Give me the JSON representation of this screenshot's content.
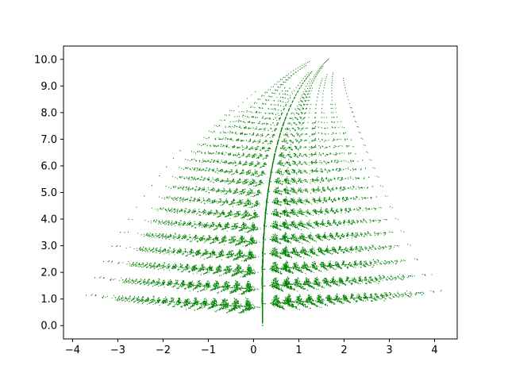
{
  "chart_data": {
    "type": "scatter",
    "title": "",
    "xlabel": "",
    "ylabel": "",
    "xlim": [
      -4.2,
      4.5
    ],
    "ylim": [
      -0.5,
      10.5
    ],
    "grid": false,
    "legend": "none",
    "xticks": [
      -4,
      -3,
      -2,
      -1,
      0,
      1,
      2,
      3,
      4
    ],
    "xtick_labels": [
      "−4",
      "−3",
      "−2",
      "−1",
      "0",
      "1",
      "2",
      "3",
      "4"
    ],
    "yticks": [
      0,
      1,
      2,
      3,
      4,
      5,
      6,
      7,
      8,
      9,
      10
    ],
    "ytick_labels": [
      "0.0",
      "1.0",
      "2.0",
      "3.0",
      "4.0",
      "5.0",
      "6.0",
      "7.0",
      "8.0",
      "9.0",
      "10.0"
    ],
    "series": [
      {
        "kind": "ifs-fern",
        "color": "#008000",
        "marker_size": 1,
        "point_count": 20000,
        "x_range": [
          -3.7,
          4.15
        ],
        "y_range": [
          0,
          10.0
        ],
        "maps": [
          {
            "a": 0,
            "b": 0,
            "c": 0,
            "d": 0.25,
            "e": 0,
            "f": -0.4,
            "p": 0.02
          },
          {
            "a": 0.95,
            "b": 0.005,
            "c": -0.005,
            "d": 0.93,
            "e": -0.002,
            "f": 0.5,
            "p": 0.84
          },
          {
            "a": 0.035,
            "b": -0.2,
            "c": 0.16,
            "d": 0.04,
            "e": -0.09,
            "f": 0.02,
            "p": 0.07
          },
          {
            "a": -0.04,
            "b": 0.2,
            "c": 0.16,
            "d": 0.04,
            "e": 0.083,
            "f": 0.12,
            "p": 0.07
          }
        ]
      }
    ]
  }
}
